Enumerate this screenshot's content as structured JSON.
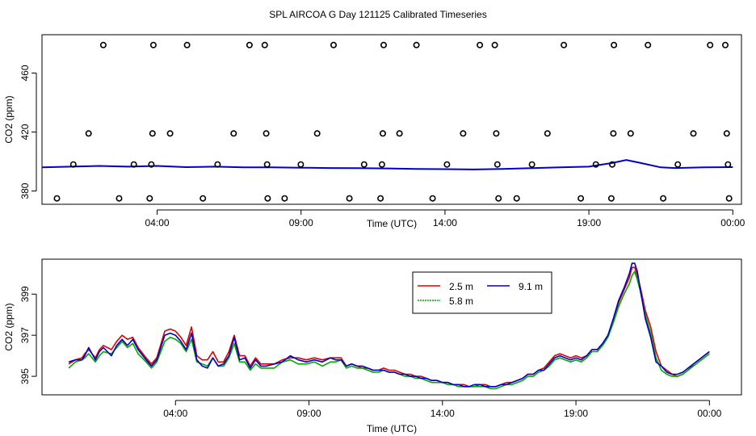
{
  "title": "SPL AIRCOA G  Day 121125  Calibrated Timeseries",
  "chart_data": [
    {
      "type": "scatter",
      "xlabel": "Time (UTC)",
      "ylabel": "CO2 (ppm)",
      "xlim": [
        0.0,
        24.3
      ],
      "ylim": [
        371,
        486
      ],
      "x_ticks": [
        {
          "value": 4,
          "label": "04:00"
        },
        {
          "value": 9,
          "label": "09:00"
        },
        {
          "value": 14,
          "label": "14:00"
        },
        {
          "value": 19,
          "label": "19:00"
        },
        {
          "value": 24,
          "label": "00:00"
        }
      ],
      "y_ticks": [
        380,
        420,
        460
      ],
      "series": [
        {
          "type": "points",
          "color": "#000000",
          "points": [
            {
              "x": 0.52,
              "y": 375
            },
            {
              "x": 1.09,
              "y": 398
            },
            {
              "x": 1.62,
              "y": 419
            },
            {
              "x": 2.13,
              "y": 479
            },
            {
              "x": 2.68,
              "y": 375
            },
            {
              "x": 3.19,
              "y": 398
            },
            {
              "x": 3.74,
              "y": 375
            },
            {
              "x": 3.8,
              "y": 398
            },
            {
              "x": 3.84,
              "y": 419
            },
            {
              "x": 3.87,
              "y": 479
            },
            {
              "x": 4.45,
              "y": 419
            },
            {
              "x": 5.04,
              "y": 479
            },
            {
              "x": 5.59,
              "y": 375
            },
            {
              "x": 6.1,
              "y": 398
            },
            {
              "x": 6.66,
              "y": 419
            },
            {
              "x": 7.21,
              "y": 479
            },
            {
              "x": 7.74,
              "y": 479
            },
            {
              "x": 7.79,
              "y": 419
            },
            {
              "x": 7.82,
              "y": 398
            },
            {
              "x": 7.84,
              "y": 375
            },
            {
              "x": 8.43,
              "y": 375
            },
            {
              "x": 8.99,
              "y": 398
            },
            {
              "x": 9.56,
              "y": 419
            },
            {
              "x": 10.13,
              "y": 479
            },
            {
              "x": 10.68,
              "y": 375
            },
            {
              "x": 11.19,
              "y": 398
            },
            {
              "x": 11.76,
              "y": 375
            },
            {
              "x": 11.81,
              "y": 398
            },
            {
              "x": 11.84,
              "y": 419
            },
            {
              "x": 11.87,
              "y": 479
            },
            {
              "x": 12.42,
              "y": 419
            },
            {
              "x": 13.01,
              "y": 479
            },
            {
              "x": 13.57,
              "y": 375
            },
            {
              "x": 14.07,
              "y": 398
            },
            {
              "x": 14.63,
              "y": 419
            },
            {
              "x": 15.21,
              "y": 479
            },
            {
              "x": 15.73,
              "y": 479
            },
            {
              "x": 15.78,
              "y": 419
            },
            {
              "x": 15.82,
              "y": 398
            },
            {
              "x": 15.86,
              "y": 375
            },
            {
              "x": 16.49,
              "y": 375
            },
            {
              "x": 17.02,
              "y": 398
            },
            {
              "x": 17.56,
              "y": 419
            },
            {
              "x": 18.13,
              "y": 479
            },
            {
              "x": 18.72,
              "y": 375
            },
            {
              "x": 19.24,
              "y": 398
            },
            {
              "x": 19.78,
              "y": 375
            },
            {
              "x": 19.81,
              "y": 398
            },
            {
              "x": 19.85,
              "y": 419
            },
            {
              "x": 19.87,
              "y": 479
            },
            {
              "x": 20.45,
              "y": 419
            },
            {
              "x": 21.05,
              "y": 479
            },
            {
              "x": 21.58,
              "y": 375
            },
            {
              "x": 22.09,
              "y": 398
            },
            {
              "x": 22.63,
              "y": 419
            },
            {
              "x": 23.21,
              "y": 479
            },
            {
              "x": 23.74,
              "y": 479
            },
            {
              "x": 23.79,
              "y": 419
            },
            {
              "x": 23.83,
              "y": 398
            },
            {
              "x": 23.87,
              "y": 375
            }
          ]
        },
        {
          "type": "line",
          "color": "#0000cc",
          "x": [
            0,
            1,
            2,
            3,
            4,
            5,
            6,
            7,
            8,
            9,
            10,
            11,
            12,
            13,
            14,
            15,
            16,
            17,
            18,
            19,
            19.8,
            20.3,
            20.8,
            21.5,
            22,
            23,
            24
          ],
          "y": [
            396,
            396.5,
            397,
            396.5,
            397,
            396.2,
            396.5,
            396,
            396,
            395.8,
            395.6,
            395.5,
            395.3,
            395,
            394.8,
            394.6,
            395,
            395.5,
            396,
            396.5,
            399,
            401,
            399,
            396,
            395.6,
            396,
            396.2
          ]
        }
      ]
    },
    {
      "type": "line",
      "xlabel": "Time (UTC)",
      "ylabel": "CO2 (ppm)",
      "xlim": [
        -1.0,
        25.2
      ],
      "ylim": [
        394.1,
        400.7
      ],
      "x_ticks": [
        {
          "value": 4,
          "label": "04:00"
        },
        {
          "value": 9,
          "label": "09:00"
        },
        {
          "value": 14,
          "label": "14:00"
        },
        {
          "value": 19,
          "label": "19:00"
        },
        {
          "value": 24,
          "label": "00:00"
        }
      ],
      "y_ticks": [
        395,
        397,
        399
      ],
      "legend": {
        "placement": "top-right",
        "entries": [
          {
            "label": "2.5 m",
            "color": "#e00000"
          },
          {
            "label": "9.1 m",
            "color": "#0000cc"
          },
          {
            "label": "5.8 m",
            "color": "#00aa00"
          }
        ]
      },
      "x": [
        0.0,
        0.25,
        0.5,
        0.6,
        0.75,
        1.0,
        1.15,
        1.3,
        1.6,
        1.8,
        2.0,
        2.2,
        2.4,
        2.6,
        2.9,
        3.1,
        3.3,
        3.6,
        3.8,
        4.0,
        4.2,
        4.4,
        4.6,
        4.8,
        5.0,
        5.2,
        5.4,
        5.6,
        5.8,
        6.0,
        6.2,
        6.4,
        6.6,
        6.8,
        7.0,
        7.2,
        7.4,
        7.7,
        8.0,
        8.3,
        8.6,
        8.9,
        9.2,
        9.5,
        9.8,
        10.0,
        10.2,
        10.4,
        10.6,
        10.8,
        11.0,
        11.2,
        11.4,
        11.6,
        11.8,
        12.0,
        12.2,
        12.4,
        12.6,
        12.8,
        13.0,
        13.2,
        13.4,
        13.6,
        13.8,
        14.0,
        14.2,
        14.4,
        14.6,
        14.8,
        15.0,
        15.2,
        15.4,
        15.6,
        15.8,
        16.0,
        16.2,
        16.4,
        16.6,
        16.8,
        17.0,
        17.2,
        17.4,
        17.6,
        17.8,
        18.0,
        18.2,
        18.4,
        18.6,
        18.8,
        19.0,
        19.2,
        19.4,
        19.6,
        19.8,
        20.0,
        20.2,
        20.4,
        20.6,
        20.8,
        21.0,
        21.1,
        21.2,
        21.3,
        21.4,
        21.6,
        21.8,
        22.0,
        22.2,
        22.4,
        22.6,
        22.8,
        23.0,
        23.2,
        23.4,
        23.6,
        23.8,
        24.0
      ],
      "series": [
        {
          "name": "2.5 m",
          "color": "#e00000",
          "values": [
            395.6,
            395.8,
            395.9,
            396.1,
            396.3,
            395.9,
            396.3,
            396.5,
            396.3,
            396.7,
            397.0,
            396.8,
            396.9,
            396.4,
            395.9,
            395.6,
            395.9,
            397.2,
            397.3,
            397.2,
            396.9,
            396.5,
            397.4,
            396.0,
            395.8,
            395.8,
            396.2,
            395.7,
            395.7,
            396.2,
            397.0,
            396.0,
            396.0,
            395.5,
            395.9,
            395.6,
            395.6,
            395.6,
            395.8,
            395.9,
            395.9,
            395.8,
            395.9,
            395.8,
            395.9,
            395.9,
            395.9,
            395.5,
            395.6,
            395.5,
            395.4,
            395.4,
            395.3,
            395.3,
            395.4,
            395.3,
            395.3,
            395.2,
            395.1,
            395.1,
            395.0,
            395.0,
            394.9,
            394.8,
            394.8,
            394.7,
            394.7,
            394.6,
            394.6,
            394.6,
            394.5,
            394.5,
            394.6,
            394.6,
            394.5,
            394.5,
            394.6,
            394.7,
            394.7,
            394.8,
            394.9,
            395.1,
            395.1,
            395.3,
            395.4,
            395.7,
            396.0,
            396.1,
            396.0,
            395.9,
            396.0,
            395.9,
            396.0,
            396.3,
            396.3,
            396.6,
            397.0,
            397.7,
            398.6,
            399.2,
            399.8,
            400.3,
            400.3,
            399.9,
            399.4,
            398.2,
            397.4,
            396.2,
            395.5,
            395.3,
            395.1,
            395.0,
            395.1,
            395.3,
            395.6,
            395.8,
            396.0,
            396.2
          ]
        },
        {
          "name": "5.8 m",
          "color": "#00aa00",
          "values": [
            395.4,
            395.7,
            395.8,
            395.9,
            396.1,
            395.7,
            396.0,
            396.2,
            396.1,
            396.4,
            396.7,
            396.4,
            396.6,
            396.1,
            395.7,
            395.4,
            395.7,
            396.7,
            396.9,
            396.8,
            396.6,
            396.2,
            396.8,
            395.7,
            395.6,
            395.5,
            395.9,
            395.5,
            395.5,
            395.9,
            396.6,
            395.7,
            395.7,
            395.3,
            395.6,
            395.4,
            395.4,
            395.4,
            395.7,
            395.8,
            395.6,
            395.6,
            395.7,
            395.5,
            395.7,
            395.7,
            395.8,
            395.4,
            395.5,
            395.4,
            395.4,
            395.3,
            395.2,
            395.2,
            395.3,
            395.2,
            395.2,
            395.1,
            395.0,
            395.0,
            394.9,
            394.9,
            394.8,
            394.7,
            394.7,
            394.7,
            394.6,
            394.6,
            394.5,
            394.5,
            394.5,
            394.5,
            394.5,
            394.5,
            394.4,
            394.4,
            394.5,
            394.6,
            394.6,
            394.7,
            394.8,
            395.0,
            395.0,
            395.2,
            395.3,
            395.5,
            395.8,
            395.9,
            395.8,
            395.7,
            395.8,
            395.7,
            395.9,
            396.2,
            396.2,
            396.5,
            396.9,
            397.6,
            398.4,
            399.0,
            399.5,
            399.9,
            400.1,
            399.7,
            399.2,
            398.0,
            397.1,
            395.9,
            395.3,
            395.1,
            395.0,
            395.0,
            395.1,
            395.3,
            395.5,
            395.7,
            395.9,
            396.1
          ]
        },
        {
          "name": "9.1 m",
          "color": "#0000cc",
          "values": [
            395.7,
            395.8,
            395.8,
            396.0,
            396.4,
            395.8,
            396.2,
            396.4,
            396.0,
            396.5,
            396.8,
            396.5,
            396.8,
            396.3,
            395.8,
            395.5,
            395.8,
            397.0,
            397.1,
            397.0,
            396.7,
            396.3,
            397.1,
            395.8,
            395.5,
            395.4,
            395.9,
            395.5,
            395.6,
            396.0,
            396.9,
            395.8,
            395.9,
            395.4,
            395.8,
            395.5,
            395.5,
            395.6,
            395.7,
            396.0,
            395.8,
            395.7,
            395.8,
            395.7,
            395.9,
            395.8,
            395.8,
            395.5,
            395.6,
            395.5,
            395.5,
            395.4,
            395.3,
            395.3,
            395.3,
            395.2,
            395.2,
            395.1,
            395.1,
            395.0,
            395.0,
            394.9,
            394.9,
            394.8,
            394.8,
            394.7,
            394.7,
            394.6,
            394.6,
            394.5,
            394.5,
            394.6,
            394.6,
            394.5,
            394.5,
            394.5,
            394.6,
            394.6,
            394.7,
            394.8,
            394.9,
            395.1,
            395.1,
            395.3,
            395.3,
            395.6,
            395.9,
            396.0,
            395.9,
            395.8,
            395.9,
            395.8,
            396.0,
            396.3,
            396.3,
            396.6,
            397.0,
            397.8,
            398.7,
            399.3,
            400.0,
            400.5,
            400.5,
            400.1,
            399.3,
            397.8,
            396.9,
            395.7,
            395.5,
            395.2,
            395.1,
            395.1,
            395.2,
            395.4,
            395.6,
            395.8,
            396.0,
            396.2
          ]
        }
      ]
    }
  ]
}
